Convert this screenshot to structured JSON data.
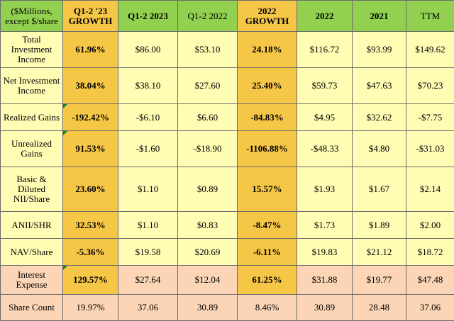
{
  "header": {
    "col0": "($Millions, except $/share",
    "col1": "Q1-2 '23 GROWTH",
    "col2": "Q1-2 2023",
    "col3": "Q1-2 2022",
    "col4": "2022 GROWTH",
    "col5": "2022",
    "col6": "2021",
    "col7": "TTM"
  },
  "rows": [
    {
      "label": "Total Investment Income",
      "g1": "61.96%",
      "q23": "$86.00",
      "q22": "$53.10",
      "g2": "24.18%",
      "y22": "$116.72",
      "y21": "$93.99",
      "ttm": "$149.62"
    },
    {
      "label": "Net Investment Income",
      "g1": "38.04%",
      "q23": "$38.10",
      "q22": "$27.60",
      "g2": "25.40%",
      "y22": "$59.73",
      "y21": "$47.63",
      "ttm": "$70.23"
    },
    {
      "label": "Realized Gains",
      "g1": "-192.42%",
      "q23": "-$6.10",
      "q22": "$6.60",
      "g2": "-84.83%",
      "y22": "$4.95",
      "y21": "$32.62",
      "ttm": "-$7.75"
    },
    {
      "label": "Unrealized Gains",
      "g1": "91.53%",
      "q23": "-$1.60",
      "q22": "-$18.90",
      "g2": "-1106.88%",
      "y22": "-$48.33",
      "y21": "$4.80",
      "ttm": "-$31.03"
    },
    {
      "label": "Basic & Diluted NII/Share",
      "g1": "23.60%",
      "q23": "$1.10",
      "q22": "$0.89",
      "g2": "15.57%",
      "y22": "$1.93",
      "y21": "$1.67",
      "ttm": "$2.14"
    },
    {
      "label": "ANII/SHR",
      "g1": "32.53%",
      "q23": "$1.10",
      "q22": "$0.83",
      "g2": "-8.47%",
      "y22": "$1.73",
      "y21": "$1.89",
      "ttm": "$2.00"
    },
    {
      "label": "NAV/Share",
      "g1": "-5.36%",
      "q23": "$19.58",
      "q22": "$20.69",
      "g2": "-6.11%",
      "y22": "$19.83",
      "y21": "$21.12",
      "ttm": "$18.72"
    },
    {
      "label": "Interest Expense",
      "g1": "129.57%",
      "q23": "$27.64",
      "q22": "$12.04",
      "g2": "61.25%",
      "y22": "$31.88",
      "y21": "$19.77",
      "ttm": "$47.48"
    },
    {
      "label": "Share Count",
      "g1": "19.97%",
      "q23": "37.06",
      "q22": "30.89",
      "g2": "8.46%",
      "y22": "30.89",
      "y21": "28.48",
      "ttm": "37.06"
    }
  ],
  "colors": {
    "header_green": "#92d050",
    "growth_orange": "#f6c646",
    "value_yellow": "#fffcb4",
    "value_peach": "#fbd5b5",
    "corner_mark": "#1a7a2a"
  }
}
